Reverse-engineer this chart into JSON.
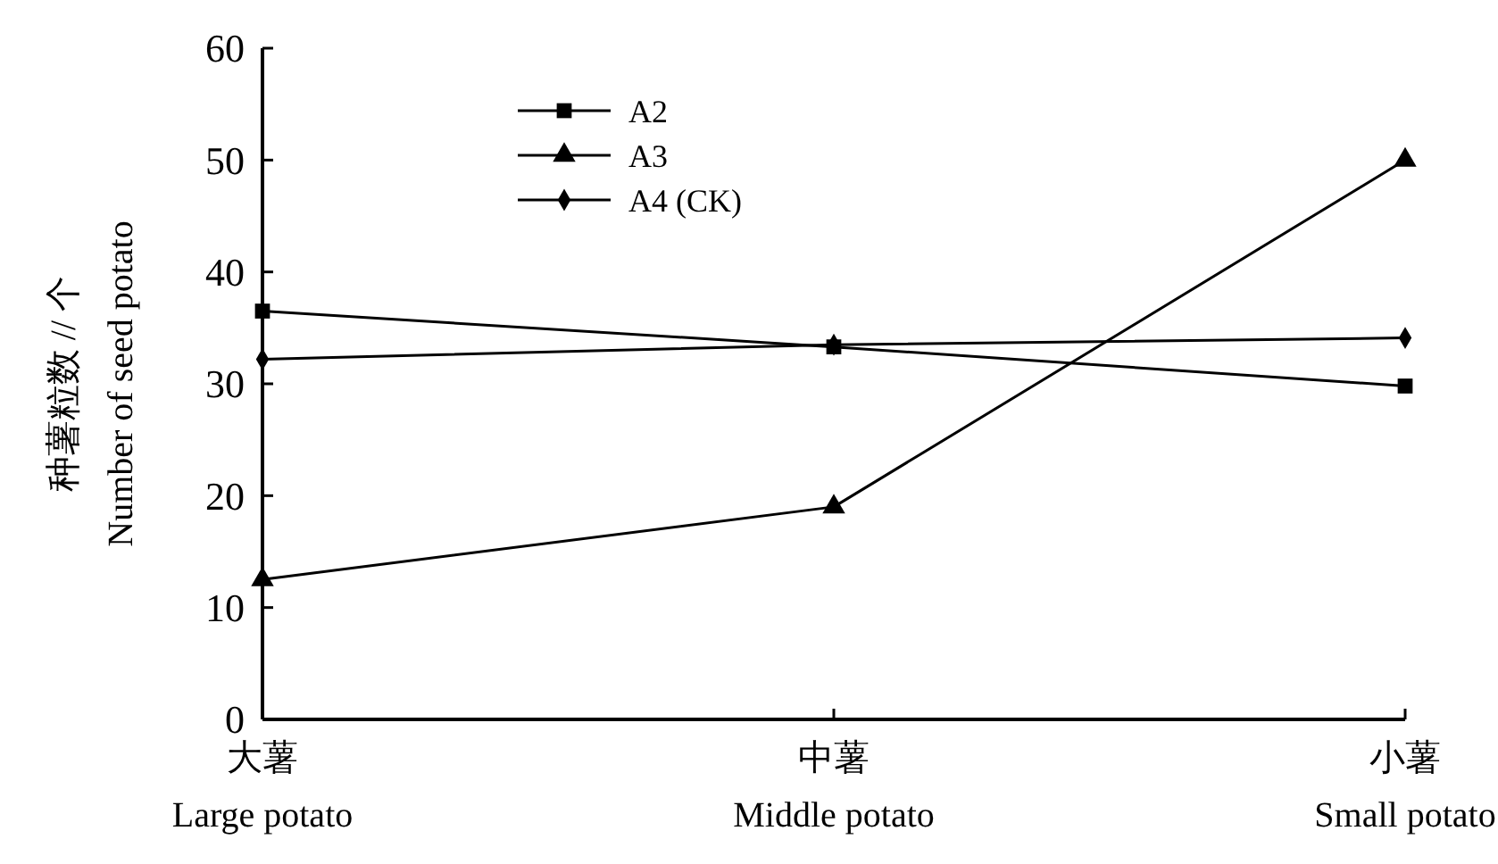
{
  "chart_data": {
    "type": "line",
    "ylabel": "种薯粒数 // 个\nNumber of seed potato",
    "categories": [
      "大薯\nLarge potato",
      "中薯\nMiddle potato",
      "小薯\nSmall potato"
    ],
    "series": [
      {
        "name": "A2",
        "color": "#000000",
        "marker": "square",
        "values": [
          36.5,
          33.3,
          29.8
        ]
      },
      {
        "name": "A3",
        "color": "#000000",
        "marker": "triangle",
        "values": [
          12.5,
          19.0,
          50.0
        ]
      },
      {
        "name": "A4 (CK)",
        "color": "#000000",
        "marker": "diamond",
        "values": [
          32.2,
          33.5,
          34.1
        ]
      }
    ],
    "ylim": [
      0,
      60
    ],
    "yticks": [
      0,
      10,
      20,
      30,
      40,
      50,
      60
    ],
    "grid": false,
    "legend": "top left",
    "line_style": "solid"
  }
}
